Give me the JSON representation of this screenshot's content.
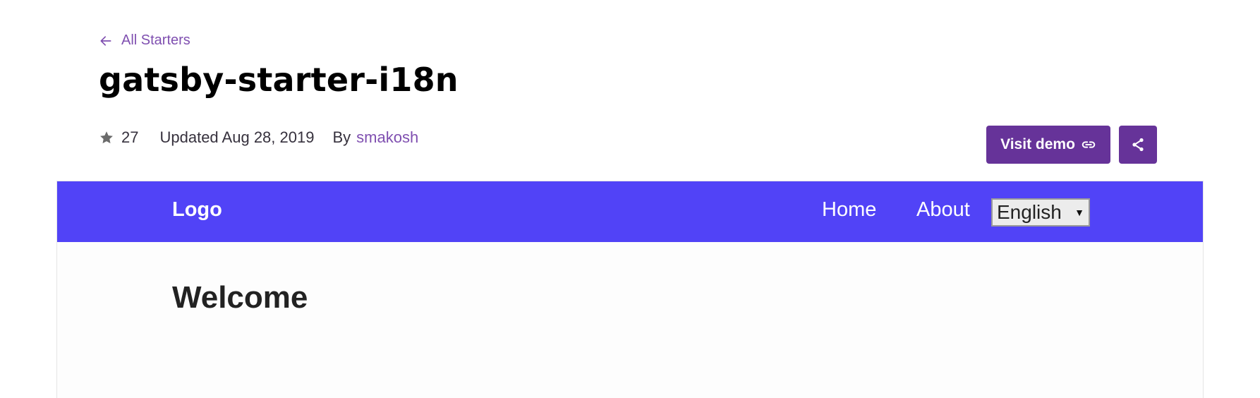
{
  "back_link": {
    "label": "All Starters"
  },
  "title": "gatsby-starter-i18n",
  "meta": {
    "stars": "27",
    "updated": "Updated Aug 28, 2019",
    "by_label": "By",
    "author": "smakosh"
  },
  "actions": {
    "visit_demo_label": "Visit demo"
  },
  "preview": {
    "logo": "Logo",
    "nav": [
      "Home",
      "About"
    ],
    "language": "English",
    "heading": "Welcome"
  },
  "colors": {
    "brand_purple": "#663399",
    "link_purple": "#7f4fb0",
    "preview_nav": "#5143f7"
  }
}
